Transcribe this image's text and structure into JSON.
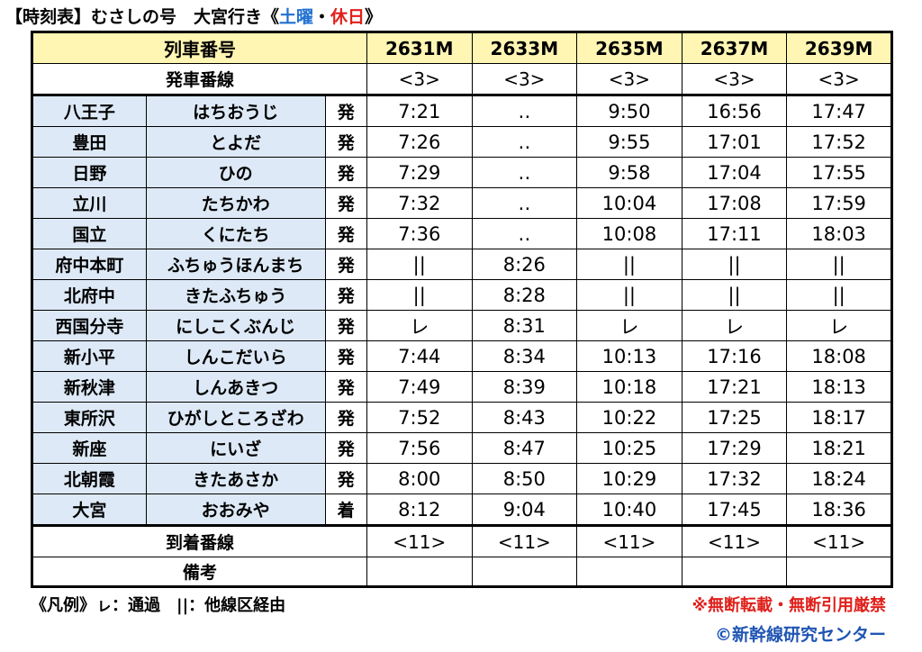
{
  "title": {
    "prefix": "【時刻表】むさしの号　大宮行き《",
    "sat": "土曜",
    "dot": "・",
    "hol": "休日",
    "suffix": "》"
  },
  "header": {
    "train_label": "列車番号",
    "track_label": "発車番線",
    "trains": [
      "2631M",
      "2633M",
      "2635M",
      "2637M",
      "2639M"
    ],
    "dep_tracks": [
      "<3>",
      "<3>",
      "<3>",
      "<3>",
      "<3>"
    ]
  },
  "stations": [
    {
      "kanji": "八王子",
      "kana": "はちおうじ",
      "da": "発",
      "times": [
        "7:21",
        "‥",
        "9:50",
        "16:56",
        "17:47"
      ]
    },
    {
      "kanji": "豊田",
      "kana": "とよだ",
      "da": "発",
      "times": [
        "7:26",
        "‥",
        "9:55",
        "17:01",
        "17:52"
      ]
    },
    {
      "kanji": "日野",
      "kana": "ひの",
      "da": "発",
      "times": [
        "7:29",
        "‥",
        "9:58",
        "17:04",
        "17:55"
      ]
    },
    {
      "kanji": "立川",
      "kana": "たちかわ",
      "da": "発",
      "times": [
        "7:32",
        "‥",
        "10:04",
        "17:08",
        "17:59"
      ]
    },
    {
      "kanji": "国立",
      "kana": "くにたち",
      "da": "発",
      "times": [
        "7:36",
        "‥",
        "10:08",
        "17:11",
        "18:03"
      ]
    },
    {
      "kanji": "府中本町",
      "kana": "ふちゅうほんまち",
      "da": "発",
      "times": [
        "||",
        "8:26",
        "||",
        "||",
        "||"
      ]
    },
    {
      "kanji": "北府中",
      "kana": "きたふちゅう",
      "da": "発",
      "times": [
        "||",
        "8:28",
        "||",
        "||",
        "||"
      ]
    },
    {
      "kanji": "西国分寺",
      "kana": "にしこくぶんじ",
      "da": "発",
      "times": [
        "レ",
        "8:31",
        "レ",
        "レ",
        "レ"
      ]
    },
    {
      "kanji": "新小平",
      "kana": "しんこだいら",
      "da": "発",
      "times": [
        "7:44",
        "8:34",
        "10:13",
        "17:16",
        "18:08"
      ]
    },
    {
      "kanji": "新秋津",
      "kana": "しんあきつ",
      "da": "発",
      "times": [
        "7:49",
        "8:39",
        "10:18",
        "17:21",
        "18:13"
      ]
    },
    {
      "kanji": "東所沢",
      "kana": "ひがしところざわ",
      "da": "発",
      "times": [
        "7:52",
        "8:43",
        "10:22",
        "17:25",
        "18:17"
      ]
    },
    {
      "kanji": "新座",
      "kana": "にいざ",
      "da": "発",
      "times": [
        "7:56",
        "8:47",
        "10:25",
        "17:29",
        "18:21"
      ]
    },
    {
      "kanji": "北朝霞",
      "kana": "きたあさか",
      "da": "発",
      "times": [
        "8:00",
        "8:50",
        "10:29",
        "17:32",
        "18:24"
      ]
    },
    {
      "kanji": "大宮",
      "kana": "おおみや",
      "da": "着",
      "times": [
        "8:12",
        "9:04",
        "10:40",
        "17:45",
        "18:36"
      ]
    }
  ],
  "footer": {
    "arr_label": "到着番線",
    "arr_tracks": [
      "<11>",
      "<11>",
      "<11>",
      "<11>",
      "<11>"
    ],
    "remarks_label": "備考"
  },
  "legend": "《凡例》ㇾ：通過　||：他線区経由",
  "warning": "※無断転載・無断引用厳禁",
  "copyright": "©新幹線研究センター"
}
